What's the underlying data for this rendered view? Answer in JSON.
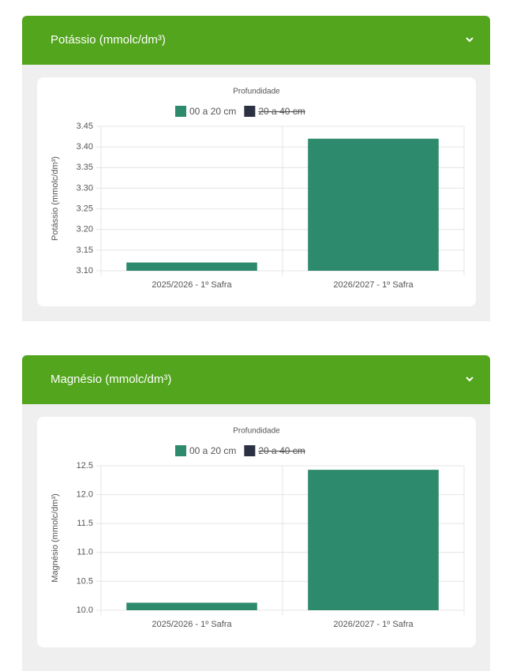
{
  "chart_data": [
    {
      "type": "bar",
      "panel_title": "Potássio (mmolc/dm³)",
      "legend_title": "Profundidade",
      "y_label": "Potássio (mmolc/dm³)",
      "categories": [
        "2025/2026 - 1º Safra",
        "2026/2027 - 1º Safra"
      ],
      "series": [
        {
          "name": "00 a 20 cm",
          "color": "#2e8a6c",
          "values": [
            3.12,
            3.42
          ]
        },
        {
          "name": "20 a 40 cm",
          "color": "#2b3142",
          "values": [
            null,
            null
          ],
          "hidden": true
        }
      ],
      "ylim": [
        3.1,
        3.45
      ],
      "yticks": [
        {
          "value": 3.1,
          "label": "3.10"
        },
        3.15,
        {
          "value": 3.2,
          "label": "3.20"
        },
        3.25,
        {
          "value": 3.3,
          "label": "3.30"
        },
        3.35,
        {
          "value": 3.4,
          "label": "3.40"
        },
        3.45
      ],
      "grid": true
    },
    {
      "type": "bar",
      "panel_title": "Magnésio (mmolc/dm³)",
      "legend_title": "Profundidade",
      "y_label": "Magnésio (mmolc/dm³)",
      "categories": [
        "2025/2026 - 1º Safra",
        "2026/2027 - 1º Safra"
      ],
      "series": [
        {
          "name": "00 a 20 cm",
          "color": "#2e8a6c",
          "values": [
            10.13,
            12.43
          ]
        },
        {
          "name": "20 a 40 cm",
          "color": "#2b3142",
          "values": [
            null,
            null
          ],
          "hidden": true
        }
      ],
      "ylim": [
        10,
        12.5
      ],
      "yticks": [
        {
          "value": 10,
          "label": "10.0"
        },
        10.5,
        {
          "value": 11,
          "label": "11.0"
        },
        11.5,
        {
          "value": 12,
          "label": "12.0"
        },
        12.5
      ],
      "grid": true
    }
  ]
}
